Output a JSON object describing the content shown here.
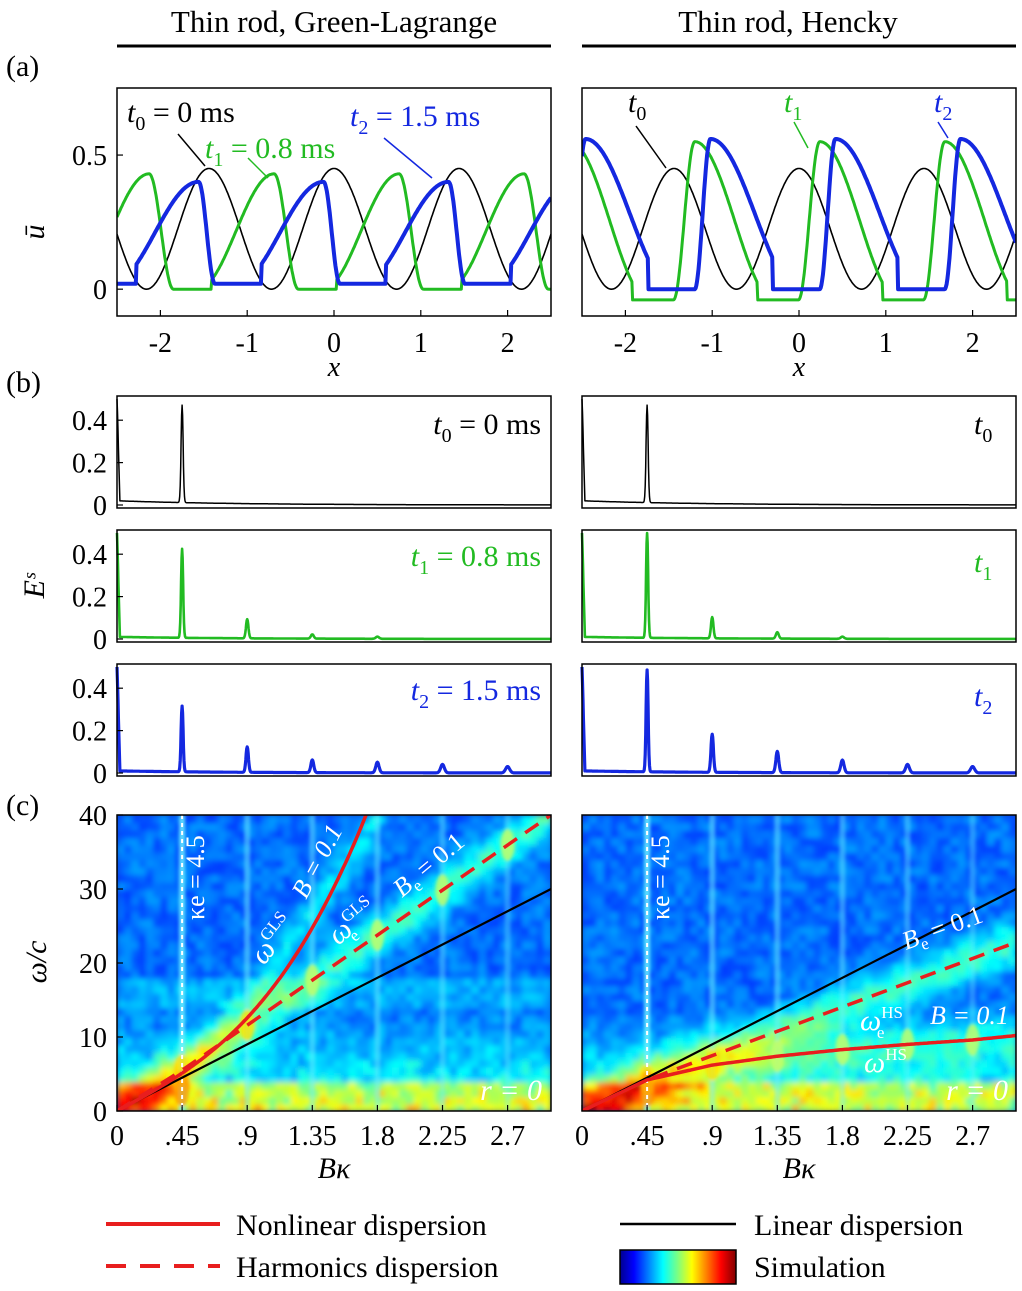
{
  "columns": [
    {
      "title": "Thin rod, Green-Lagrange"
    },
    {
      "title": "Thin rod, Hencky"
    }
  ],
  "panel_labels": [
    "(a)",
    "(b)",
    "(c)"
  ],
  "colors": {
    "t0": "#000000",
    "t1": "#22bb22",
    "t2": "#1428e0",
    "red": "#e81e1e"
  },
  "chart_data": [
    {
      "id": "a-left",
      "type": "line",
      "panel": "(a)",
      "column": "Green-Lagrange",
      "xlabel": "x",
      "ylabel": "ū",
      "xlim": [
        -2.5,
        2.5
      ],
      "ylim": [
        -0.1,
        0.75
      ],
      "xticks": [
        -2,
        -1,
        0,
        1,
        2
      ],
      "yticks": [
        0,
        0.5
      ],
      "xtick_labels": [
        "-2",
        "-1",
        "0",
        "1",
        "2"
      ],
      "ytick_labels": [
        "0",
        "0.5"
      ],
      "series": [
        {
          "name": "t0",
          "label": "t₀ = 0 ms",
          "peaks_x": [
            -1.44,
            0,
            1.44
          ],
          "peak": 0.45,
          "trough": 0.0,
          "wavelength": 1.44,
          "asymmetry": 0
        },
        {
          "name": "t1",
          "label": "t₁ = 0.8 ms",
          "peaks_x": [
            -2.13,
            -0.69,
            0.75,
            2.19
          ],
          "peak": 0.43,
          "trough": 0.0,
          "wavelength": 1.44,
          "asymmetry": 0.45
        },
        {
          "name": "t2",
          "label": "t₂ = 1.5 ms",
          "peaks_x": [
            -1.56,
            -0.12,
            1.32
          ],
          "peak": 0.4,
          "trough": 0.02,
          "wavelength": 1.44,
          "asymmetry": 0.8
        }
      ],
      "annotations": [
        "t₀ = 0 ms",
        "t₁ = 0.8 ms",
        "t₂ = 1.5 ms"
      ]
    },
    {
      "id": "a-right",
      "type": "line",
      "panel": "(a)",
      "column": "Hencky",
      "xlabel": "x",
      "ylabel": "",
      "xlim": [
        -2.5,
        2.5
      ],
      "ylim": [
        -0.1,
        0.75
      ],
      "xticks": [
        -2,
        -1,
        0,
        1,
        2
      ],
      "xtick_labels": [
        "-2",
        "-1",
        "0",
        "1",
        "2"
      ],
      "series": [
        {
          "name": "t0",
          "label": "t₀",
          "peaks_x": [
            -1.44,
            0,
            1.44
          ],
          "peak": 0.45,
          "trough": 0.0,
          "wavelength": 1.44,
          "asymmetry": 0
        },
        {
          "name": "t1",
          "label": "t₁",
          "peaks_x": [
            -1.2,
            0.24,
            1.68
          ],
          "peak": 0.55,
          "trough": -0.04,
          "wavelength": 1.44,
          "asymmetry": -0.55
        },
        {
          "name": "t2",
          "label": "t₂",
          "peaks_x": [
            -2.46,
            -1.02,
            0.42,
            1.86
          ],
          "peak": 0.56,
          "trough": 0.0,
          "wavelength": 1.44,
          "asymmetry": -0.85
        }
      ],
      "annotations": [
        "t₀",
        "t₁",
        "t₂"
      ]
    },
    {
      "id": "b-left",
      "type": "line",
      "panel": "(b)",
      "column": "Green-Lagrange",
      "ylabel": "Eˢ",
      "xlim": [
        0,
        3.0
      ],
      "ylim": [
        0,
        0.5
      ],
      "yticks": [
        0,
        0.2,
        0.4
      ],
      "ytick_labels": [
        "0",
        "0.2",
        "0.4"
      ],
      "rows": [
        {
          "label": "t₀ = 0 ms",
          "color": "t0",
          "peaks": [
            {
              "x": 0.45,
              "y": 0.46
            }
          ],
          "start": 0.5,
          "floor": 0.02
        },
        {
          "label": "t₁ = 0.8 ms",
          "color": "t1",
          "peaks": [
            {
              "x": 0.45,
              "y": 0.42
            },
            {
              "x": 0.9,
              "y": 0.09
            },
            {
              "x": 1.35,
              "y": 0.02
            },
            {
              "x": 1.8,
              "y": 0.01
            }
          ],
          "start": 0.5,
          "floor": 0.01
        },
        {
          "label": "t₂ = 1.5 ms",
          "color": "t2",
          "peaks": [
            {
              "x": 0.45,
              "y": 0.31
            },
            {
              "x": 0.9,
              "y": 0.12
            },
            {
              "x": 1.35,
              "y": 0.06
            },
            {
              "x": 1.8,
              "y": 0.05
            },
            {
              "x": 2.25,
              "y": 0.04
            },
            {
              "x": 2.7,
              "y": 0.03
            }
          ],
          "start": 0.5,
          "floor": 0.01
        }
      ]
    },
    {
      "id": "b-right",
      "type": "line",
      "panel": "(b)",
      "column": "Hencky",
      "xlim": [
        0,
        3.0
      ],
      "ylim": [
        0,
        0.5
      ],
      "rows": [
        {
          "label": "t₀",
          "color": "t0",
          "peaks": [
            {
              "x": 0.45,
              "y": 0.46
            }
          ],
          "start": 0.5,
          "floor": 0.02
        },
        {
          "label": "t₁",
          "color": "t1",
          "peaks": [
            {
              "x": 0.45,
              "y": 0.5
            },
            {
              "x": 0.9,
              "y": 0.1
            },
            {
              "x": 1.35,
              "y": 0.03
            },
            {
              "x": 1.8,
              "y": 0.01
            }
          ],
          "start": 0.5,
          "floor": 0.01
        },
        {
          "label": "t₂",
          "color": "t2",
          "peaks": [
            {
              "x": 0.45,
              "y": 0.48
            },
            {
              "x": 0.9,
              "y": 0.18
            },
            {
              "x": 1.35,
              "y": 0.1
            },
            {
              "x": 1.8,
              "y": 0.06
            },
            {
              "x": 2.25,
              "y": 0.04
            },
            {
              "x": 2.7,
              "y": 0.03
            }
          ],
          "start": 0.5,
          "floor": 0.01
        }
      ]
    },
    {
      "id": "c-left",
      "type": "heatmap",
      "panel": "(c)",
      "column": "Green-Lagrange",
      "xlabel": "Bκ",
      "ylabel": "ω/c",
      "xlim": [
        0,
        3.0
      ],
      "ylim": [
        0,
        40
      ],
      "xticks": [
        0,
        0.45,
        0.9,
        1.35,
        1.8,
        2.25,
        2.7
      ],
      "xtick_labels": [
        "0",
        ".45",
        ".9",
        "1.35",
        "1.8",
        "2.25",
        "2.7"
      ],
      "yticks": [
        0,
        10,
        20,
        30,
        40
      ],
      "ytick_labels": [
        "0",
        "10",
        "20",
        "30",
        "40"
      ],
      "ridges_x": [
        0.45,
        0.9,
        1.35,
        1.8,
        2.25,
        2.7
      ],
      "kappa_e_line": 0.45,
      "kappa_e_label": "κe = 4.5",
      "linear_dispersion": {
        "x": [
          0,
          3.0
        ],
        "y": [
          0,
          30
        ]
      },
      "nonlinear_dispersion": {
        "name": "ωGLS",
        "B": 0.1,
        "x": [
          0,
          0.45,
          0.9,
          1.35,
          1.6,
          1.8
        ],
        "y": [
          0,
          5.5,
          14,
          27,
          34,
          40
        ]
      },
      "harmonics_dispersion": {
        "name": "ωeGLS",
        "Be": 0.1,
        "x": [
          0,
          0.45,
          3.0
        ],
        "y": [
          0,
          5.5,
          40
        ]
      },
      "labels": {
        "nonlinear": "ω",
        "nonlinear_sup": "GLS",
        "harmonic": "ω",
        "harmonic_sub": "e",
        "harmonic_sup": "GLS",
        "B": "B = 0.1",
        "Be": "B",
        "Be_sub": "e",
        "Be_val": " = 0.1",
        "r": "r = 0"
      }
    },
    {
      "id": "c-right",
      "type": "heatmap",
      "panel": "(c)",
      "column": "Hencky",
      "xlabel": "Bκ",
      "xlim": [
        0,
        3.0
      ],
      "ylim": [
        0,
        40
      ],
      "xticks": [
        0,
        0.45,
        0.9,
        1.35,
        1.8,
        2.25,
        2.7
      ],
      "xtick_labels": [
        "0",
        ".45",
        ".9",
        "1.35",
        "1.8",
        "2.25",
        "2.7"
      ],
      "ridges_x": [
        0.45,
        0.9,
        1.35,
        1.8,
        2.25,
        2.7
      ],
      "kappa_e_line": 0.45,
      "kappa_e_label": "κe = 4.5",
      "linear_dispersion": {
        "x": [
          0,
          3.0
        ],
        "y": [
          0,
          30
        ]
      },
      "nonlinear_dispersion": {
        "name": "ωHS",
        "B": 0.1,
        "x": [
          0,
          0.45,
          0.9,
          1.35,
          1.8,
          2.25,
          2.7,
          3.0
        ],
        "y": [
          0,
          4.2,
          6.2,
          7.4,
          8.3,
          9.0,
          9.6,
          10.2
        ]
      },
      "harmonics_dispersion": {
        "name": "ωeHS",
        "Be": 0.1,
        "x": [
          0,
          0.45,
          3.0
        ],
        "y": [
          0,
          4.2,
          22.8
        ]
      },
      "labels": {
        "nonlinear": "ω",
        "nonlinear_sup": "HS",
        "harmonic": "ω",
        "harmonic_sub": "e",
        "harmonic_sup": "HS",
        "B": "B = 0.1",
        "Be": "B",
        "Be_sub": "e",
        "Be_val": " = 0.1",
        "r": "r = 0"
      }
    }
  ],
  "legend": {
    "nonlinear": "Nonlinear dispersion",
    "harmonics": "Harmonics dispersion",
    "linear": "Linear dispersion",
    "simulation": "Simulation"
  }
}
